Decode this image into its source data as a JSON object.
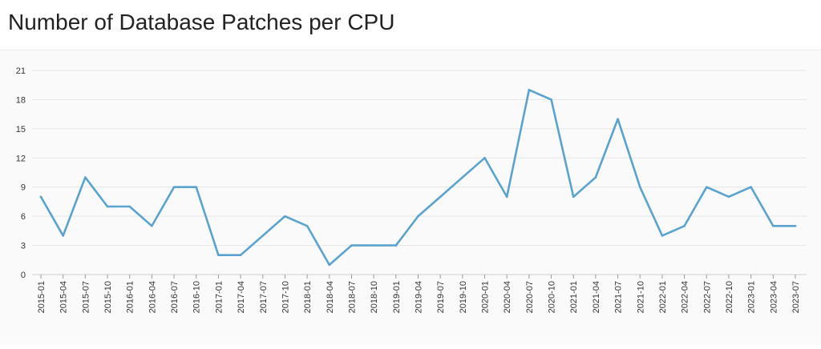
{
  "page": {
    "title": "Number of Database Patches per CPU"
  },
  "chart_data": {
    "type": "line",
    "title": "Number of Database Patches per CPU",
    "xlabel": "",
    "ylabel": "",
    "ylim": [
      0,
      21
    ],
    "yticks": [
      0,
      3,
      6,
      9,
      12,
      15,
      18,
      21
    ],
    "grid": true,
    "categories": [
      "2015-01",
      "2015-04",
      "2015-07",
      "2015-10",
      "2016-01",
      "2016-04",
      "2016-07",
      "2016-10",
      "2017-01",
      "2017-04",
      "2017-07",
      "2017-10",
      "2018-01",
      "2018-04",
      "2018-07",
      "2018-10",
      "2019-01",
      "2019-04",
      "2019-07",
      "2019-10",
      "2020-01",
      "2020-04",
      "2020-07",
      "2020-10",
      "2021-01",
      "2021-04",
      "2021-07",
      "2021-10",
      "2022-01",
      "2022-04",
      "2022-07",
      "2022-10",
      "2023-01",
      "2023-04",
      "2023-07"
    ],
    "series": [
      {
        "color": "#5ba3cf",
        "values": [
          8,
          4,
          10,
          7,
          7,
          5,
          9,
          9,
          2,
          2,
          4,
          6,
          5,
          1,
          3,
          3,
          3,
          6,
          8,
          10,
          12,
          8,
          19,
          18,
          8,
          10,
          16,
          9,
          4,
          5,
          9,
          8,
          9,
          5,
          5
        ]
      }
    ]
  }
}
